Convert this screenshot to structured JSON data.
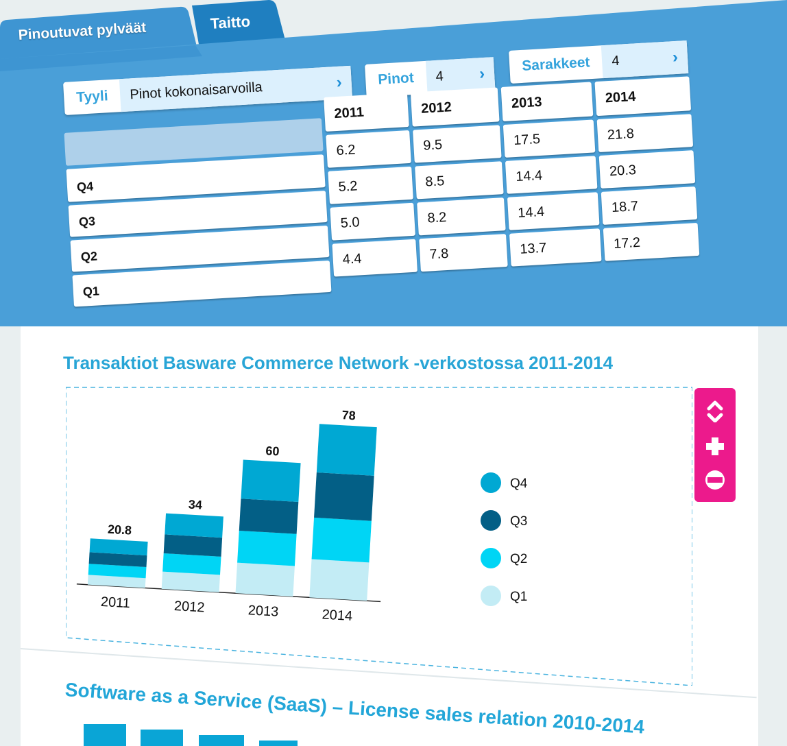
{
  "tabs": [
    {
      "label": "Pinoutuvat pylväät",
      "active": true
    },
    {
      "label": "Taitto",
      "active": false
    }
  ],
  "controls": {
    "style": {
      "label": "Tyyli",
      "value": "Pinot kokonaisarvoilla"
    },
    "stacks": {
      "label": "Pinot",
      "value": "4"
    },
    "columns": {
      "label": "Sarakkeet",
      "value": "4"
    }
  },
  "table": {
    "headers": [
      "2011",
      "2012",
      "2013",
      "2014"
    ],
    "rows": [
      {
        "label": "Q4",
        "values": [
          "6.2",
          "9.5",
          "17.5",
          "21.8"
        ]
      },
      {
        "label": "Q3",
        "values": [
          "5.2",
          "8.5",
          "14.4",
          "20.3"
        ]
      },
      {
        "label": "Q2",
        "values": [
          "5.0",
          "8.2",
          "14.4",
          "18.7"
        ]
      },
      {
        "label": "Q1",
        "values": [
          "4.4",
          "7.8",
          "13.7",
          "17.2"
        ]
      }
    ]
  },
  "chart_data": {
    "type": "bar",
    "stacked": true,
    "title": "Transaktiot Basware Commerce Network -verkostossa 2011-2014",
    "categories": [
      "2011",
      "2012",
      "2013",
      "2014"
    ],
    "totals": [
      "20.8",
      "34",
      "60",
      "78"
    ],
    "series": [
      {
        "name": "Q1",
        "values": [
          4.4,
          7.8,
          13.7,
          17.2
        ],
        "color": "#c3ecf5"
      },
      {
        "name": "Q2",
        "values": [
          5.0,
          8.2,
          14.4,
          18.7
        ],
        "color": "#00d5f5"
      },
      {
        "name": "Q3",
        "values": [
          5.2,
          8.5,
          14.4,
          20.3
        ],
        "color": "#035f86"
      },
      {
        "name": "Q4",
        "values": [
          6.2,
          9.5,
          17.5,
          21.8
        ],
        "color": "#00a8d3"
      }
    ],
    "legend": [
      "Q4",
      "Q3",
      "Q2",
      "Q1"
    ],
    "legend_position": "right",
    "grid": false
  },
  "toolbar": {
    "reorder": "reorder-icon",
    "add": "plus-icon",
    "remove": "minus-icon",
    "accent": "#ec1a8c"
  },
  "next_chart": {
    "title": "Software as a Service (SaaS) – License sales relation 2010-2014"
  },
  "colors": {
    "panel": "#4a9fd8",
    "accent": "#34a3dc",
    "title": "#28a5d6"
  }
}
